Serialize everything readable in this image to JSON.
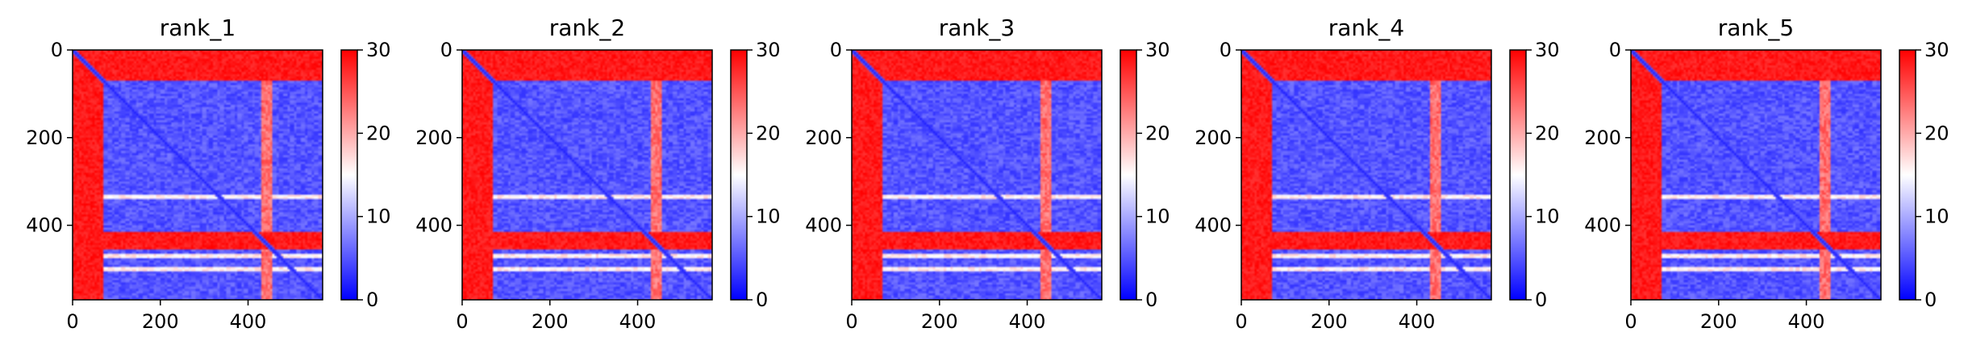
{
  "chart_data": [
    {
      "type": "heatmap",
      "title": "rank_1",
      "xlim": [
        0,
        570
      ],
      "ylim": [
        570,
        0
      ],
      "xticks": [
        "0",
        "200",
        "400"
      ],
      "yticks": [
        "0",
        "200",
        "400"
      ],
      "colorbar": {
        "min": 0,
        "max": 30,
        "ticks": [
          "0",
          "10",
          "20",
          "30"
        ],
        "colormap": "bwr"
      },
      "structure": {
        "bright_bands_x": [
          [
            0,
            70
          ]
        ],
        "bright_bands_y": [
          [
            0,
            70
          ],
          [
            415,
            455
          ]
        ],
        "stripe_cols": [
          [
            430,
            455
          ]
        ],
        "faint_rows": [
          335,
          470,
          500
        ]
      }
    },
    {
      "type": "heatmap",
      "title": "rank_2",
      "xlim": [
        0,
        570
      ],
      "ylim": [
        570,
        0
      ],
      "xticks": [
        "0",
        "200",
        "400"
      ],
      "yticks": [
        "0",
        "200",
        "400"
      ],
      "colorbar": {
        "min": 0,
        "max": 30,
        "ticks": [
          "0",
          "10",
          "20",
          "30"
        ],
        "colormap": "bwr"
      },
      "structure": {
        "bright_bands_x": [
          [
            0,
            70
          ]
        ],
        "bright_bands_y": [
          [
            0,
            70
          ],
          [
            415,
            455
          ]
        ],
        "stripe_cols": [
          [
            430,
            455
          ]
        ],
        "faint_rows": [
          335,
          470,
          500
        ]
      }
    },
    {
      "type": "heatmap",
      "title": "rank_3",
      "xlim": [
        0,
        570
      ],
      "ylim": [
        570,
        0
      ],
      "xticks": [
        "0",
        "200",
        "400"
      ],
      "yticks": [
        "0",
        "200",
        "400"
      ],
      "colorbar": {
        "min": 0,
        "max": 30,
        "ticks": [
          "0",
          "10",
          "20",
          "30"
        ],
        "colormap": "bwr"
      },
      "structure": {
        "bright_bands_x": [
          [
            0,
            70
          ]
        ],
        "bright_bands_y": [
          [
            0,
            70
          ],
          [
            415,
            455
          ]
        ],
        "stripe_cols": [
          [
            430,
            455
          ]
        ],
        "faint_rows": [
          335,
          470,
          500
        ]
      }
    },
    {
      "type": "heatmap",
      "title": "rank_4",
      "xlim": [
        0,
        570
      ],
      "ylim": [
        570,
        0
      ],
      "xticks": [
        "0",
        "200",
        "400"
      ],
      "yticks": [
        "0",
        "200",
        "400"
      ],
      "colorbar": {
        "min": 0,
        "max": 30,
        "ticks": [
          "0",
          "10",
          "20",
          "30"
        ],
        "colormap": "bwr"
      },
      "structure": {
        "bright_bands_x": [
          [
            0,
            70
          ]
        ],
        "bright_bands_y": [
          [
            0,
            70
          ],
          [
            415,
            455
          ]
        ],
        "stripe_cols": [
          [
            430,
            455
          ]
        ],
        "faint_rows": [
          335,
          470,
          500
        ]
      }
    },
    {
      "type": "heatmap",
      "title": "rank_5",
      "xlim": [
        0,
        570
      ],
      "ylim": [
        570,
        0
      ],
      "xticks": [
        "0",
        "200",
        "400"
      ],
      "yticks": [
        "0",
        "200",
        "400"
      ],
      "colorbar": {
        "min": 0,
        "max": 30,
        "ticks": [
          "0",
          "10",
          "20",
          "30"
        ],
        "colormap": "bwr"
      },
      "structure": {
        "bright_bands_x": [
          [
            0,
            70
          ]
        ],
        "bright_bands_y": [
          [
            0,
            70
          ],
          [
            415,
            455
          ]
        ],
        "stripe_cols": [
          [
            430,
            455
          ]
        ],
        "faint_rows": [
          335,
          470,
          500
        ]
      }
    }
  ],
  "colors": {
    "low": "#0000ff",
    "mid": "#ffffff",
    "high": "#ff0000"
  }
}
